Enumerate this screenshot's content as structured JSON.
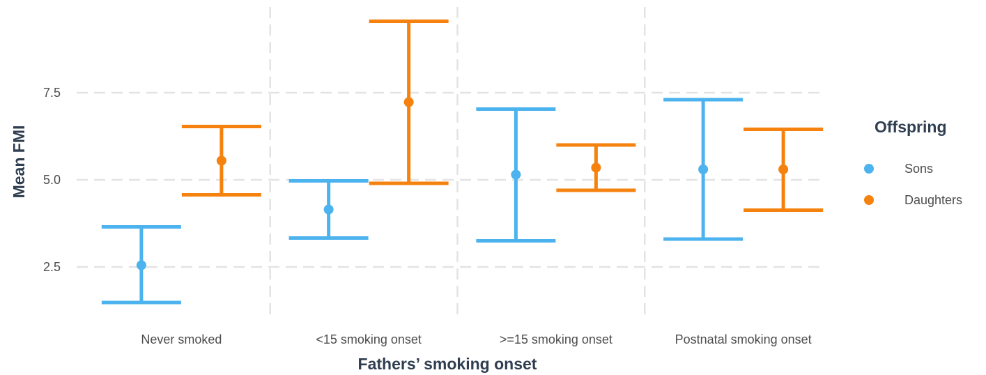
{
  "chart_data": {
    "type": "errorbar",
    "title": "",
    "xlabel": "Fathers’ smoking onset",
    "ylabel": "Mean FMI",
    "categories": [
      "Never smoked",
      "<15 smoking onset",
      ">=15 smoking onset",
      "Postnatal smoking onset"
    ],
    "yticks": [
      "2.5",
      "5.0",
      "7.5"
    ],
    "ylim": [
      1.0,
      10.2
    ],
    "grid": true,
    "legend": {
      "title": "Offspring",
      "position": "right"
    },
    "series": [
      {
        "name": "Sons",
        "color": "#4db3ee",
        "mean": [
          2.55,
          4.15,
          5.15,
          5.3
        ],
        "lower": [
          1.48,
          3.33,
          3.25,
          3.3
        ],
        "upper": [
          3.65,
          4.97,
          7.03,
          7.3
        ]
      },
      {
        "name": "Daughters",
        "color": "#f5820f",
        "mean": [
          5.55,
          7.23,
          5.35,
          5.3
        ],
        "lower": [
          4.57,
          4.9,
          4.7,
          4.13
        ],
        "upper": [
          6.53,
          9.55,
          6.0,
          6.45
        ]
      }
    ]
  }
}
